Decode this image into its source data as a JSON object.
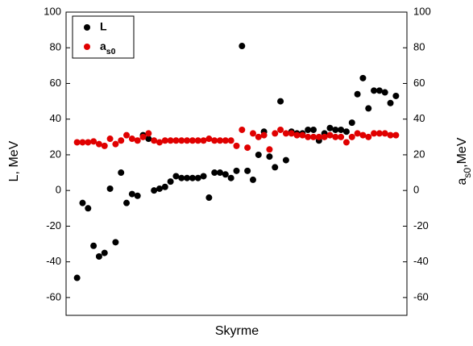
{
  "chart_data": {
    "type": "scatter",
    "xlabel": "Skyrme",
    "ylabel": "L, MeV",
    "y2label": "as0,MeV",
    "x": [
      1,
      2,
      3,
      4,
      5,
      6,
      7,
      8,
      9,
      10,
      11,
      12,
      13,
      14,
      15,
      16,
      17,
      18,
      19,
      20,
      21,
      22,
      23,
      24,
      25,
      26,
      27,
      28,
      29,
      30,
      31,
      32,
      33,
      34,
      35,
      36,
      37,
      38,
      39,
      40,
      41,
      42,
      43,
      44,
      45,
      46,
      47,
      48,
      49,
      50,
      51,
      52,
      53,
      54,
      55,
      56,
      57,
      58,
      59
    ],
    "xlim": [
      -1,
      61
    ],
    "ylim": [
      -70,
      100
    ],
    "yticks": [
      -60,
      -40,
      -20,
      0,
      20,
      40,
      60,
      80,
      100
    ],
    "y2lim": [
      -70,
      100
    ],
    "y2ticks": [
      -60,
      -40,
      -20,
      0,
      20,
      40,
      60,
      80,
      100
    ],
    "legend": "upper left",
    "series": [
      {
        "name": "L",
        "color": "#000000",
        "values": [
          -49,
          -7,
          -10,
          -31,
          -37,
          -35,
          1,
          -29,
          10,
          -7,
          -2,
          -3,
          31,
          29,
          0,
          1,
          2,
          5,
          8,
          7,
          7,
          7,
          7,
          8,
          -4,
          10,
          10,
          9,
          7,
          11,
          81,
          11,
          6,
          20,
          33,
          19,
          13,
          50,
          17,
          33,
          32,
          32,
          34,
          34,
          28,
          32,
          35,
          34,
          34,
          33,
          38,
          54,
          63,
          46,
          56,
          56,
          55,
          49,
          53
        ]
      },
      {
        "name": "as0",
        "color": "#e00000",
        "axis": "y2",
        "values": [
          27,
          27,
          27,
          27.5,
          26,
          25,
          29,
          26,
          28,
          31,
          29,
          28,
          30,
          32,
          28,
          27,
          28,
          28,
          28,
          28,
          28,
          28,
          28,
          28,
          29,
          28,
          28,
          28,
          28,
          25,
          34,
          24,
          32,
          30,
          31,
          23,
          32,
          34,
          32,
          32,
          31,
          31,
          30,
          30,
          30,
          30,
          31,
          30,
          30,
          27,
          30,
          32,
          31,
          30,
          32,
          32,
          32,
          31,
          31
        ]
      }
    ]
  }
}
